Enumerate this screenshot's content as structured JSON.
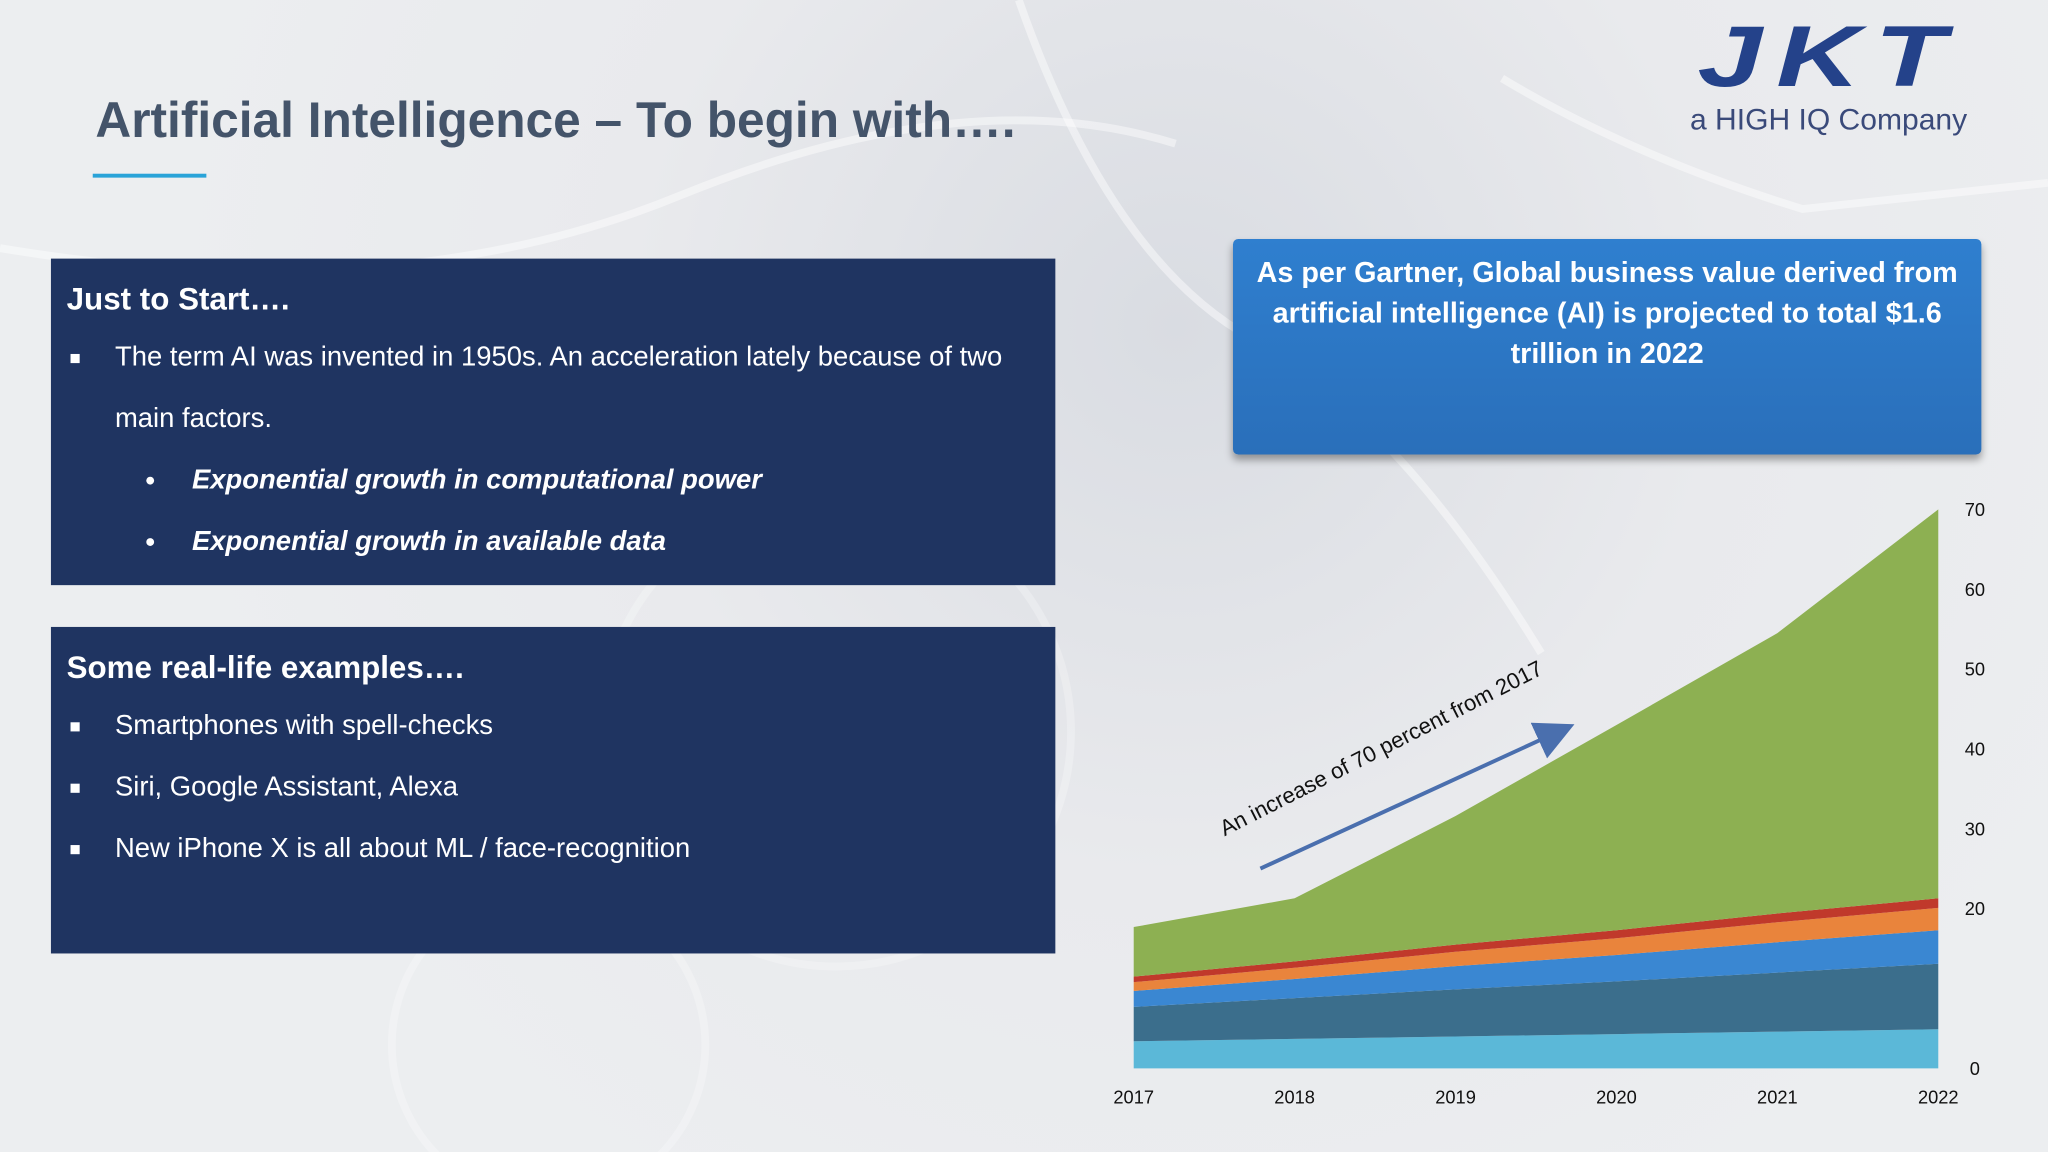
{
  "logo": {
    "brand": "JKT",
    "tagline": "a HIGH IQ Company"
  },
  "title": "Artificial Intelligence – To begin with….",
  "start": {
    "heading": "Just to Start….",
    "bullet": "The term AI was invented in 1950s. An acceleration lately because of two main factors.",
    "subbullets": [
      "Exponential growth in computational power",
      "Exponential growth in available data"
    ]
  },
  "examples": {
    "heading": "Some real-life examples….",
    "bullets": [
      "Smartphones with spell-checks",
      "Siri, Google Assistant, Alexa",
      "New iPhone X is all about ML / face-recognition"
    ]
  },
  "callout": "As per Gartner, Global business value derived from artificial intelligence (AI) is projected to total $1.6 trillion in 2022",
  "chart_data": {
    "type": "stacked_area",
    "categories": [
      "2017",
      "2018",
      "2019",
      "2020",
      "2021",
      "2022"
    ],
    "series": [
      {
        "color": "#5bb8d8",
        "values": [
          3.4,
          3.7,
          4.0,
          4.3,
          4.6,
          4.9
        ]
      },
      {
        "color": "#3b6e8c",
        "values": [
          4.3,
          5.1,
          5.9,
          6.6,
          7.4,
          8.2
        ]
      },
      {
        "color": "#3a87d2",
        "values": [
          2.0,
          2.4,
          2.9,
          3.3,
          3.8,
          4.2
        ]
      },
      {
        "color": "#e9843c",
        "values": [
          1.1,
          1.4,
          1.8,
          2.1,
          2.5,
          2.8
        ]
      },
      {
        "color": "#c0392b",
        "values": [
          0.7,
          0.8,
          0.9,
          1.0,
          1.1,
          1.2
        ]
      },
      {
        "color": "#8db052",
        "values": [
          6.2,
          7.9,
          16.1,
          25.7,
          35.1,
          48.7
        ]
      }
    ],
    "ylim": [
      0,
      70
    ],
    "yticks": [
      0,
      20,
      30,
      40,
      50,
      60,
      70
    ],
    "grid": false,
    "annotation": "An increase of 70 percent from 2017"
  }
}
